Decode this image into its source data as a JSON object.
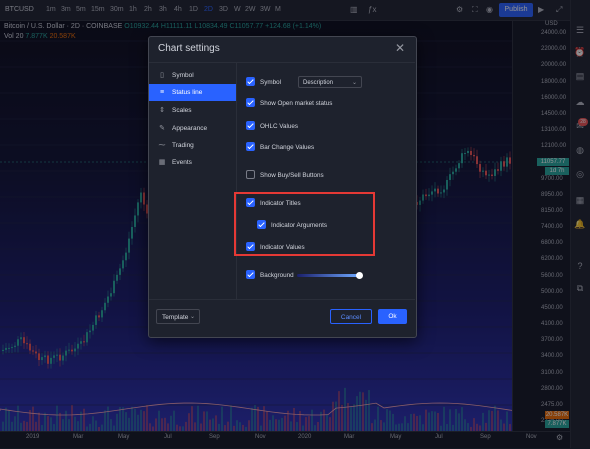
{
  "toolbar": {
    "symbol": "BTCUSD",
    "timeframes": [
      "1m",
      "3m",
      "5m",
      "15m",
      "30m",
      "1h",
      "2h",
      "3h",
      "4h",
      "1D",
      "2D",
      "3D",
      "W",
      "2W",
      "3W",
      "M"
    ],
    "active_timeframe": "2D",
    "publish_label": "Publish"
  },
  "legend": {
    "title": "Bitcoin / U.S. Dollar",
    "interval": "2D",
    "exchange": "COINBASE",
    "ohlc": "O10932.44 H11111.11 L10834.49 C11057.77 +124.68 (+1.14%)",
    "vol_label": "Vol 20",
    "vol_value1": "7.877K",
    "vol_value2": "20.587K"
  },
  "price_axis": {
    "currency": "USD",
    "labels": [
      "24000.00",
      "22000.00",
      "20000.00",
      "18000.00",
      "16000.00",
      "14500.00",
      "13100.00",
      "12100.00",
      "11050.00",
      "9700.00",
      "8950.00",
      "8150.00",
      "7400.00",
      "6800.00",
      "6200.00",
      "5600.00",
      "5000.00",
      "4500.00",
      "4100.00",
      "3700.00",
      "3400.00",
      "3100.00",
      "2800.00",
      "2475.00",
      "2225.00"
    ],
    "current_price": "11057.77",
    "countdown": "1d 7h",
    "vol_tag1": "20.587K",
    "vol_tag2": "7.877K"
  },
  "time_axis": {
    "labels": [
      "2019",
      "Mar",
      "May",
      "Jul",
      "Sep",
      "Nov",
      "2020",
      "Mar",
      "May",
      "Jul",
      "Sep",
      "Nov"
    ]
  },
  "dialog": {
    "title": "Chart settings",
    "nav": [
      {
        "label": "Symbol",
        "icon": "symbol-icon",
        "glyph": "▯"
      },
      {
        "label": "Status line",
        "icon": "status-line-icon",
        "glyph": "≡"
      },
      {
        "label": "Scales",
        "icon": "scales-icon",
        "glyph": "⇕"
      },
      {
        "label": "Appearance",
        "icon": "brush-icon",
        "glyph": "✎"
      },
      {
        "label": "Trading",
        "icon": "trading-icon",
        "glyph": "⁓"
      },
      {
        "label": "Events",
        "icon": "events-icon",
        "glyph": "▦"
      }
    ],
    "active_nav": "Status line",
    "options": {
      "symbol": {
        "label": "Symbol",
        "checked": true
      },
      "symbol_select": "Description",
      "open_market": {
        "label": "Show Open market status",
        "checked": true
      },
      "ohlc": {
        "label": "OHLC Values",
        "checked": true
      },
      "bar_change": {
        "label": "Bar Change Values",
        "checked": true
      },
      "buy_sell": {
        "label": "Show Buy/Sell Buttons",
        "checked": false
      },
      "indicator_titles": {
        "label": "Indicator Titles",
        "checked": true
      },
      "indicator_arguments": {
        "label": "Indicator Arguments",
        "checked": true
      },
      "indicator_values": {
        "label": "Indicator Values",
        "checked": true
      },
      "background": {
        "label": "Background",
        "checked": true
      }
    },
    "background_opacity": 1.0,
    "template_label": "Template",
    "cancel_label": "Cancel",
    "ok_label": "Ok"
  },
  "colors": {
    "accent": "#2962ff",
    "up": "#26a69a",
    "down": "#ef5350",
    "highlight": "#e53935"
  }
}
